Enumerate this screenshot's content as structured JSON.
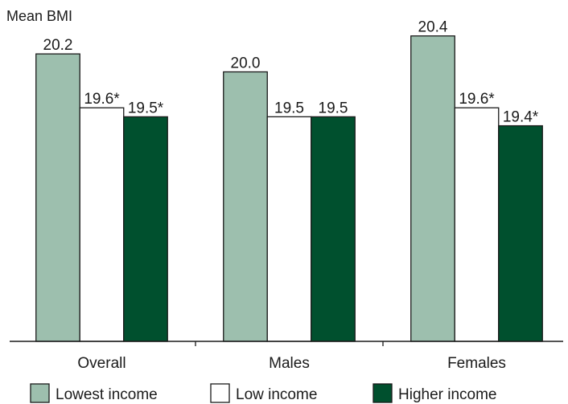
{
  "chart_data": {
    "type": "bar",
    "ylabel": "Mean BMI",
    "categories": [
      "Overall",
      "Males",
      "Females"
    ],
    "series": [
      {
        "name": "Lowest income",
        "values": [
          20.2,
          20.0,
          20.4
        ],
        "labels": [
          "20.2",
          "20.0",
          "20.4"
        ],
        "color": "#9dbfae"
      },
      {
        "name": "Low income",
        "values": [
          19.6,
          19.5,
          19.6
        ],
        "labels": [
          "19.6*",
          "19.5",
          "19.6*"
        ],
        "color": "#ffffff"
      },
      {
        "name": "Higher income",
        "values": [
          19.5,
          19.5,
          19.4
        ],
        "labels": [
          "19.5*",
          "19.5",
          "19.4*"
        ],
        "color": "#00502e"
      }
    ],
    "ylim": [
      17,
      20.8
    ],
    "grid": false,
    "legend": "bottom",
    "outline_color": "#1a1a1a"
  }
}
